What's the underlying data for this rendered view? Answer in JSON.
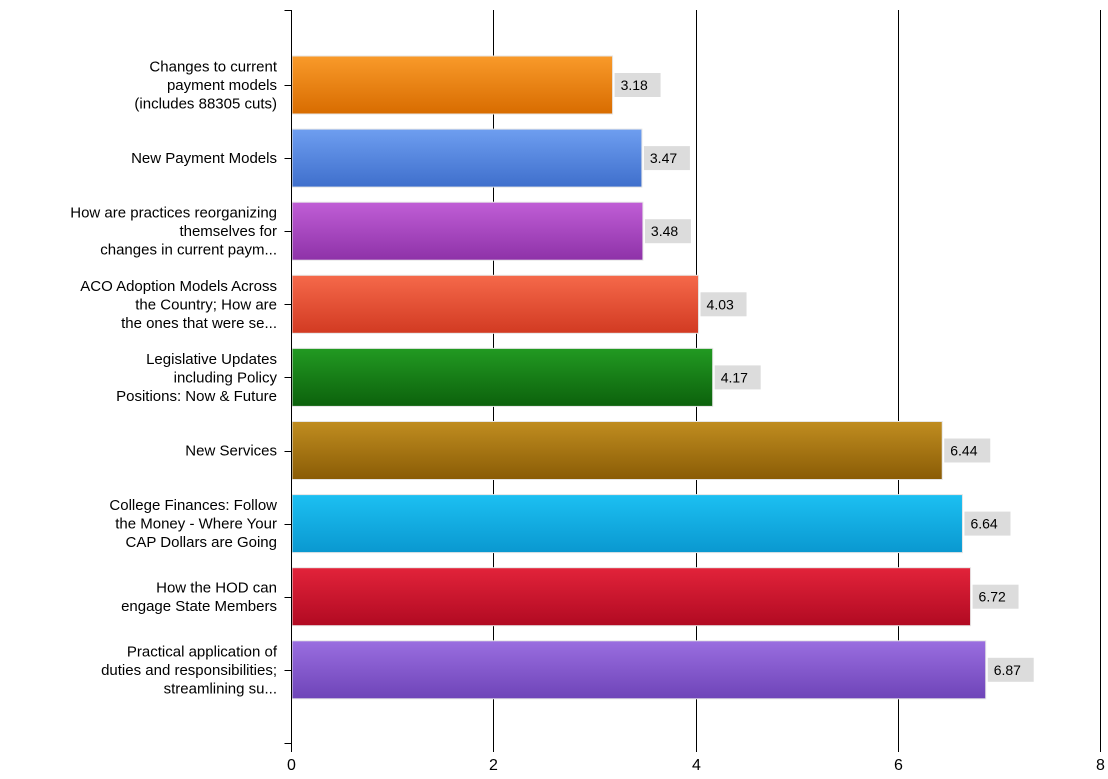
{
  "chart_data": {
    "type": "bar",
    "orientation": "horizontal",
    "title": "",
    "xlabel": "",
    "ylabel": "",
    "xlim": [
      0,
      8
    ],
    "xticks": [
      0,
      2,
      4,
      6,
      8
    ],
    "grid": "vertical",
    "legend": "none",
    "categories": [
      [
        "Changes to current",
        "payment models",
        "(includes 88305 cuts)"
      ],
      [
        "New Payment Models"
      ],
      [
        "How are practices reorganizing",
        "themselves for",
        "changes in current paym..."
      ],
      [
        "ACO Adoption Models Across",
        "the Country; How are",
        "the ones that were se..."
      ],
      [
        "Legislative Updates",
        "including Policy",
        "Positions: Now & Future"
      ],
      [
        "New Services"
      ],
      [
        "College Finances: Follow",
        "the Money - Where Your",
        "CAP Dollars are Going"
      ],
      [
        "How the HOD can",
        "engage State Members"
      ],
      [
        "Practical application of",
        "duties and responsibilities;",
        "streamlining su..."
      ]
    ],
    "values": [
      3.18,
      3.47,
      3.48,
      4.03,
      4.17,
      6.44,
      6.64,
      6.72,
      6.87
    ],
    "value_labels": [
      "3.18",
      "3.47",
      "3.48",
      "4.03",
      "4.17",
      "6.44",
      "6.64",
      "6.72",
      "6.87"
    ],
    "colors": [
      [
        "#f99a2a",
        "#d86c00"
      ],
      [
        "#6e9ef0",
        "#3f6fcc"
      ],
      [
        "#c05ed6",
        "#8e32a8"
      ],
      [
        "#f5694a",
        "#d23a22"
      ],
      [
        "#229a22",
        "#0c610c"
      ],
      [
        "#c08d20",
        "#8a5c06"
      ],
      [
        "#1cc0f2",
        "#0a98d0"
      ],
      [
        "#e2233a",
        "#b10a22"
      ],
      [
        "#9a6ee0",
        "#6e44b8"
      ]
    ],
    "value_label_bg": "#dcdcdc"
  }
}
